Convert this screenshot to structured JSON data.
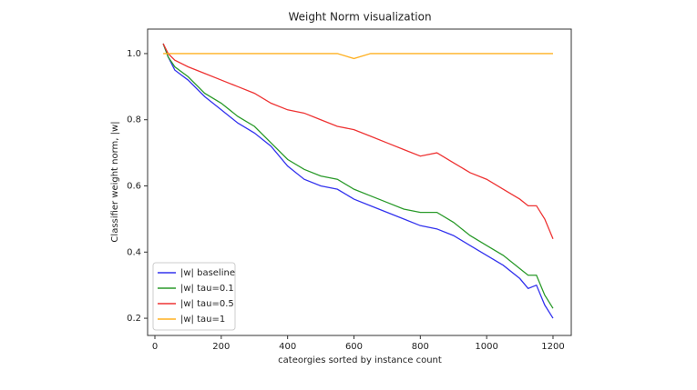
{
  "chart_data": {
    "type": "line",
    "title": "Weight Norm visualization",
    "xlabel": "cateorgies sorted by instance count",
    "ylabel": "Classifier weight norm, |w|",
    "x": [
      25,
      40,
      60,
      100,
      150,
      200,
      250,
      300,
      350,
      400,
      450,
      500,
      550,
      600,
      650,
      700,
      750,
      800,
      850,
      900,
      950,
      1000,
      1050,
      1100,
      1125,
      1150,
      1175,
      1200
    ],
    "series": [
      {
        "name": "|w| baseline",
        "color": "#3333ee",
        "values": [
          1.03,
          0.99,
          0.95,
          0.92,
          0.87,
          0.83,
          0.79,
          0.76,
          0.72,
          0.66,
          0.62,
          0.6,
          0.59,
          0.56,
          0.54,
          0.52,
          0.5,
          0.48,
          0.47,
          0.45,
          0.42,
          0.39,
          0.36,
          0.32,
          0.29,
          0.3,
          0.24,
          0.2
        ]
      },
      {
        "name": "|w| tau=0.1",
        "color": "#2a9a2a",
        "values": [
          1.03,
          0.99,
          0.96,
          0.93,
          0.88,
          0.85,
          0.81,
          0.78,
          0.73,
          0.68,
          0.65,
          0.63,
          0.62,
          0.59,
          0.57,
          0.55,
          0.53,
          0.52,
          0.52,
          0.49,
          0.45,
          0.42,
          0.39,
          0.35,
          0.33,
          0.33,
          0.27,
          0.23
        ]
      },
      {
        "name": "|w| tau=0.5",
        "color": "#ee3333",
        "values": [
          1.03,
          1.0,
          0.98,
          0.96,
          0.94,
          0.92,
          0.9,
          0.88,
          0.85,
          0.83,
          0.82,
          0.8,
          0.78,
          0.77,
          0.75,
          0.73,
          0.71,
          0.69,
          0.7,
          0.67,
          0.64,
          0.62,
          0.59,
          0.56,
          0.54,
          0.54,
          0.5,
          0.44
        ]
      },
      {
        "name": "|w| tau=1",
        "color": "#ffb020",
        "values": [
          1.0,
          1.0,
          1.0,
          1.0,
          1.0,
          1.0,
          1.0,
          1.0,
          1.0,
          1.0,
          1.0,
          1.0,
          1.0,
          0.985,
          1.0,
          1.0,
          1.0,
          1.0,
          1.0,
          1.0,
          1.0,
          1.0,
          1.0,
          1.0,
          1.0,
          1.0,
          1.0,
          1.0
        ]
      }
    ],
    "xlim": [
      -22,
      1255
    ],
    "xticks": [
      0,
      200,
      400,
      600,
      800,
      1000,
      1200
    ],
    "ylim": [
      0.148,
      1.074
    ],
    "yticks": [
      0.2,
      0.4,
      0.6,
      0.8,
      {
        "value": 1,
        "label": "1.0"
      }
    ],
    "legend": "lower left"
  }
}
